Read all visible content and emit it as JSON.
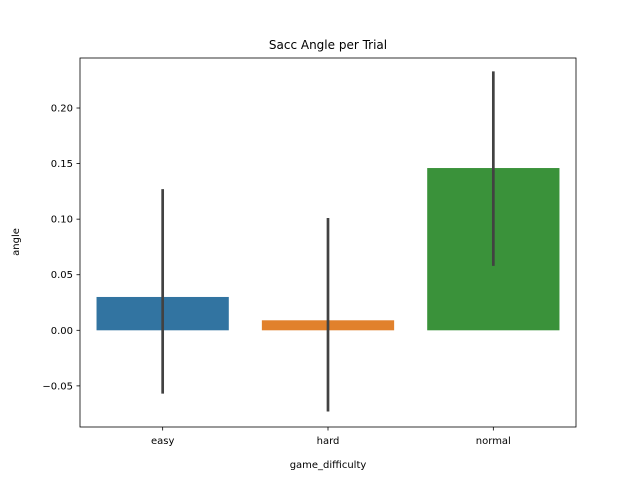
{
  "chart_data": {
    "type": "bar",
    "title": "Sacc Angle per Trial",
    "xlabel": "game_difficulty",
    "ylabel": "angle",
    "categories": [
      "easy",
      "hard",
      "normal"
    ],
    "values": [
      0.03,
      0.009,
      0.146
    ],
    "error_low": [
      -0.057,
      -0.073,
      0.058
    ],
    "error_high": [
      0.127,
      0.101,
      0.233
    ],
    "colors": [
      "#3274a1",
      "#e1812c",
      "#3a923a"
    ],
    "error_color": "#424242",
    "ylim": [
      -0.087,
      0.245
    ],
    "yticks": [
      -0.05,
      0.0,
      0.05,
      0.1,
      0.15,
      0.2
    ],
    "ytick_labels": [
      "−0.05",
      "0.00",
      "0.05",
      "0.10",
      "0.15",
      "0.20"
    ],
    "grid": false,
    "legend": "none"
  }
}
